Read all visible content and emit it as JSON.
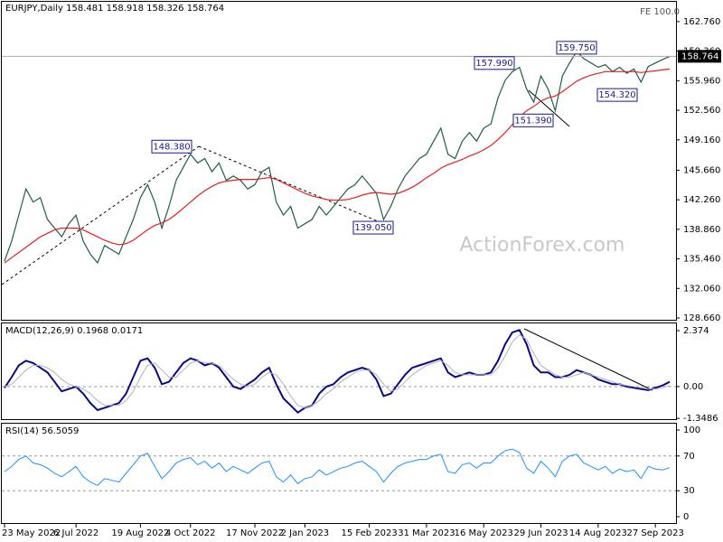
{
  "chart_data": [
    {
      "type": "line",
      "title": "EURJPY,Daily  158.481 158.918 158.326 158.764",
      "note": "FE 100.0",
      "watermark": "ActionForex.com",
      "ylim": [
        128.35,
        165.14
      ],
      "yticks": [
        {
          "value": 162.76,
          "label": "162.760"
        },
        {
          "value": 159.36,
          "label": "159.360"
        },
        {
          "value": 155.96,
          "label": "155.960"
        },
        {
          "value": 152.56,
          "label": "152.560"
        },
        {
          "value": 149.16,
          "label": "149.160"
        },
        {
          "value": 145.66,
          "label": "145.660"
        },
        {
          "value": 142.26,
          "label": "142.260"
        },
        {
          "value": 138.86,
          "label": "138.860"
        },
        {
          "value": 135.46,
          "label": "135.460"
        },
        {
          "value": 132.06,
          "label": "132.060"
        },
        {
          "value": 128.66,
          "label": "128.660"
        }
      ],
      "last_price": 158.764,
      "annotations": [
        {
          "value": 148.38,
          "label": "148.380"
        },
        {
          "value": 139.05,
          "label": "139.050"
        },
        {
          "value": 157.99,
          "label": "157.990"
        },
        {
          "value": 159.75,
          "label": "159.750"
        },
        {
          "value": 151.39,
          "label": "151.390"
        },
        {
          "value": 154.32,
          "label": "154.320"
        }
      ],
      "series": [
        {
          "color": "#1f5c4a",
          "values": [
            135.2,
            137.5,
            140.5,
            143.5,
            142.0,
            142.5,
            140.0,
            139.0,
            138.0,
            139.5,
            140.5,
            137.5,
            136.0,
            135.0,
            137.0,
            136.5,
            136.0,
            138.0,
            140.0,
            142.5,
            144.0,
            142.0,
            139.0,
            141.5,
            144.5,
            146.0,
            147.5,
            146.5,
            147.0,
            145.5,
            146.5,
            144.5,
            145.0,
            144.5,
            143.5,
            144.0,
            145.5,
            146.0,
            142.0,
            140.5,
            141.5,
            139.0,
            139.5,
            140.0,
            141.5,
            140.5,
            141.5,
            142.5,
            143.5,
            144.0,
            145.0,
            144.0,
            143.0,
            140.0,
            141.5,
            143.5,
            145.0,
            146.0,
            147.0,
            147.5,
            149.0,
            150.5,
            147.5,
            147.0,
            149.0,
            150.0,
            149.0,
            150.5,
            151.0,
            154.0,
            156.0,
            157.0,
            157.5,
            155.0,
            153.5,
            156.5,
            155.0,
            152.5,
            156.5,
            158.0,
            159.3,
            158.5,
            158.0,
            157.5,
            157.8,
            157.0,
            157.5,
            156.8,
            157.3,
            155.8,
            157.6,
            158.0,
            158.4,
            158.76
          ]
        },
        {
          "color": "#e02020",
          "values": [
            135.0,
            135.6,
            136.2,
            136.8,
            137.4,
            138.0,
            138.4,
            138.8,
            139.0,
            139.0,
            139.0,
            138.8,
            138.4,
            138.0,
            137.6,
            137.3,
            137.1,
            137.2,
            137.6,
            138.2,
            138.8,
            139.3,
            139.6,
            140.0,
            140.6,
            141.3,
            142.0,
            142.7,
            143.3,
            143.8,
            144.2,
            144.4,
            144.5,
            144.6,
            144.6,
            144.6,
            144.7,
            144.8,
            144.6,
            144.2,
            143.8,
            143.4,
            143.0,
            142.7,
            142.5,
            142.3,
            142.2,
            142.2,
            142.3,
            142.5,
            142.8,
            143.0,
            143.1,
            143.0,
            142.9,
            143.0,
            143.3,
            143.7,
            144.2,
            144.8,
            145.3,
            145.9,
            146.3,
            146.6,
            146.9,
            147.3,
            147.6,
            148.0,
            148.5,
            149.2,
            150.0,
            150.9,
            151.8,
            152.5,
            153.0,
            153.6,
            154.0,
            154.2,
            154.7,
            155.3,
            155.9,
            156.3,
            156.6,
            156.8,
            157.0,
            157.0,
            157.0,
            157.0,
            157.0,
            156.9,
            157.0,
            157.1,
            157.2,
            157.3
          ]
        }
      ]
    },
    {
      "type": "line",
      "title": "MACD(12,26,9) 0.1968 0.0171",
      "ylim": [
        -1.42,
        2.72
      ],
      "yticks": [
        2.374,
        {
          "value": 0,
          "label": "0.00"
        },
        -1.3486
      ],
      "levels": [
        0
      ],
      "series": [
        {
          "color": "#0a0a80",
          "width": 2,
          "values": [
            -0.05,
            0.4,
            0.9,
            1.1,
            1.0,
            0.8,
            0.6,
            0.2,
            -0.2,
            -0.1,
            0.0,
            -0.3,
            -0.7,
            -1.0,
            -0.9,
            -0.8,
            -0.7,
            -0.3,
            0.4,
            1.1,
            1.2,
            0.8,
            0.1,
            0.2,
            0.6,
            1.0,
            1.2,
            1.1,
            0.9,
            1.0,
            0.8,
            0.4,
            0.0,
            -0.1,
            0.1,
            0.3,
            0.6,
            0.8,
            0.1,
            -0.5,
            -0.8,
            -1.1,
            -0.9,
            -0.8,
            -0.3,
            0.0,
            0.1,
            0.4,
            0.6,
            0.7,
            0.8,
            0.7,
            0.3,
            -0.4,
            -0.3,
            0.1,
            0.5,
            0.8,
            0.9,
            1.0,
            1.1,
            1.2,
            0.6,
            0.4,
            0.5,
            0.6,
            0.5,
            0.5,
            0.6,
            1.1,
            1.8,
            2.3,
            2.4,
            1.8,
            0.9,
            0.6,
            0.6,
            0.4,
            0.4,
            0.5,
            0.7,
            0.6,
            0.5,
            0.3,
            0.2,
            0.1,
            0.1,
            0.0,
            -0.05,
            -0.1,
            -0.15,
            -0.05,
            0.05,
            0.2
          ]
        },
        {
          "color": "#b0b0c8",
          "width": 1,
          "values": [
            0.0,
            0.1,
            0.4,
            0.7,
            0.9,
            0.9,
            0.8,
            0.6,
            0.3,
            0.1,
            0.0,
            -0.1,
            -0.3,
            -0.6,
            -0.8,
            -0.8,
            -0.8,
            -0.6,
            -0.2,
            0.4,
            0.9,
            1.0,
            0.7,
            0.4,
            0.4,
            0.7,
            1.0,
            1.1,
            1.0,
            1.0,
            0.9,
            0.6,
            0.3,
            0.1,
            0.0,
            0.1,
            0.4,
            0.6,
            0.5,
            0.1,
            -0.4,
            -0.8,
            -0.9,
            -0.8,
            -0.6,
            -0.3,
            -0.1,
            0.2,
            0.4,
            0.6,
            0.7,
            0.7,
            0.5,
            0.1,
            -0.2,
            -0.1,
            0.2,
            0.5,
            0.7,
            0.9,
            1.0,
            1.1,
            0.9,
            0.6,
            0.5,
            0.5,
            0.5,
            0.5,
            0.5,
            0.8,
            1.3,
            1.9,
            2.2,
            2.0,
            1.4,
            0.9,
            0.7,
            0.5,
            0.4,
            0.4,
            0.5,
            0.6,
            0.5,
            0.4,
            0.3,
            0.2,
            0.1,
            0.05,
            0.0,
            -0.05,
            -0.1,
            -0.1,
            -0.05,
            0.05
          ]
        }
      ]
    },
    {
      "type": "line",
      "title": "RSI(14) 56.5059",
      "ylim": [
        -8.3,
        108.3
      ],
      "yticks": [
        100,
        70,
        30,
        0
      ],
      "levels": [
        70,
        30
      ],
      "categories": [
        "23 May 2022",
        null,
        null,
        null,
        null,
        null,
        null,
        null,
        null,
        null,
        "6 Jul 2022",
        null,
        null,
        null,
        null,
        null,
        null,
        null,
        null,
        "19 Aug 2022",
        null,
        null,
        null,
        null,
        null,
        null,
        "4 Oct 2022",
        null,
        null,
        null,
        null,
        null,
        null,
        null,
        null,
        "17 Nov 2022",
        null,
        null,
        null,
        null,
        null,
        null,
        "2 Jan 2023",
        null,
        null,
        null,
        null,
        null,
        null,
        null,
        null,
        "15 Feb 2023",
        null,
        null,
        null,
        null,
        null,
        null,
        null,
        "31 Mar 2023",
        null,
        null,
        null,
        null,
        null,
        null,
        null,
        "16 May 2023",
        null,
        null,
        null,
        null,
        null,
        null,
        null,
        "29 Jun 2023",
        null,
        null,
        null,
        null,
        null,
        null,
        null,
        "14 Aug 2023",
        null,
        null,
        null,
        null,
        null,
        null,
        null,
        "27 Sep 2023",
        null,
        null
      ],
      "series": [
        {
          "color": "#1e90ff",
          "width": 1,
          "values": [
            52,
            58,
            66,
            70,
            62,
            60,
            56,
            50,
            46,
            52,
            58,
            46,
            40,
            36,
            44,
            42,
            40,
            50,
            60,
            70,
            73,
            58,
            44,
            52,
            62,
            66,
            68,
            60,
            64,
            56,
            62,
            52,
            58,
            54,
            50,
            56,
            62,
            64,
            46,
            40,
            48,
            38,
            44,
            46,
            54,
            48,
            52,
            56,
            58,
            62,
            64,
            58,
            52,
            40,
            50,
            58,
            62,
            64,
            66,
            66,
            70,
            72,
            52,
            50,
            60,
            62,
            56,
            62,
            62,
            70,
            76,
            78,
            74,
            56,
            50,
            64,
            56,
            46,
            64,
            70,
            72,
            62,
            58,
            54,
            58,
            50,
            55,
            52,
            54,
            44,
            58,
            55,
            54,
            56.5
          ]
        }
      ]
    }
  ]
}
